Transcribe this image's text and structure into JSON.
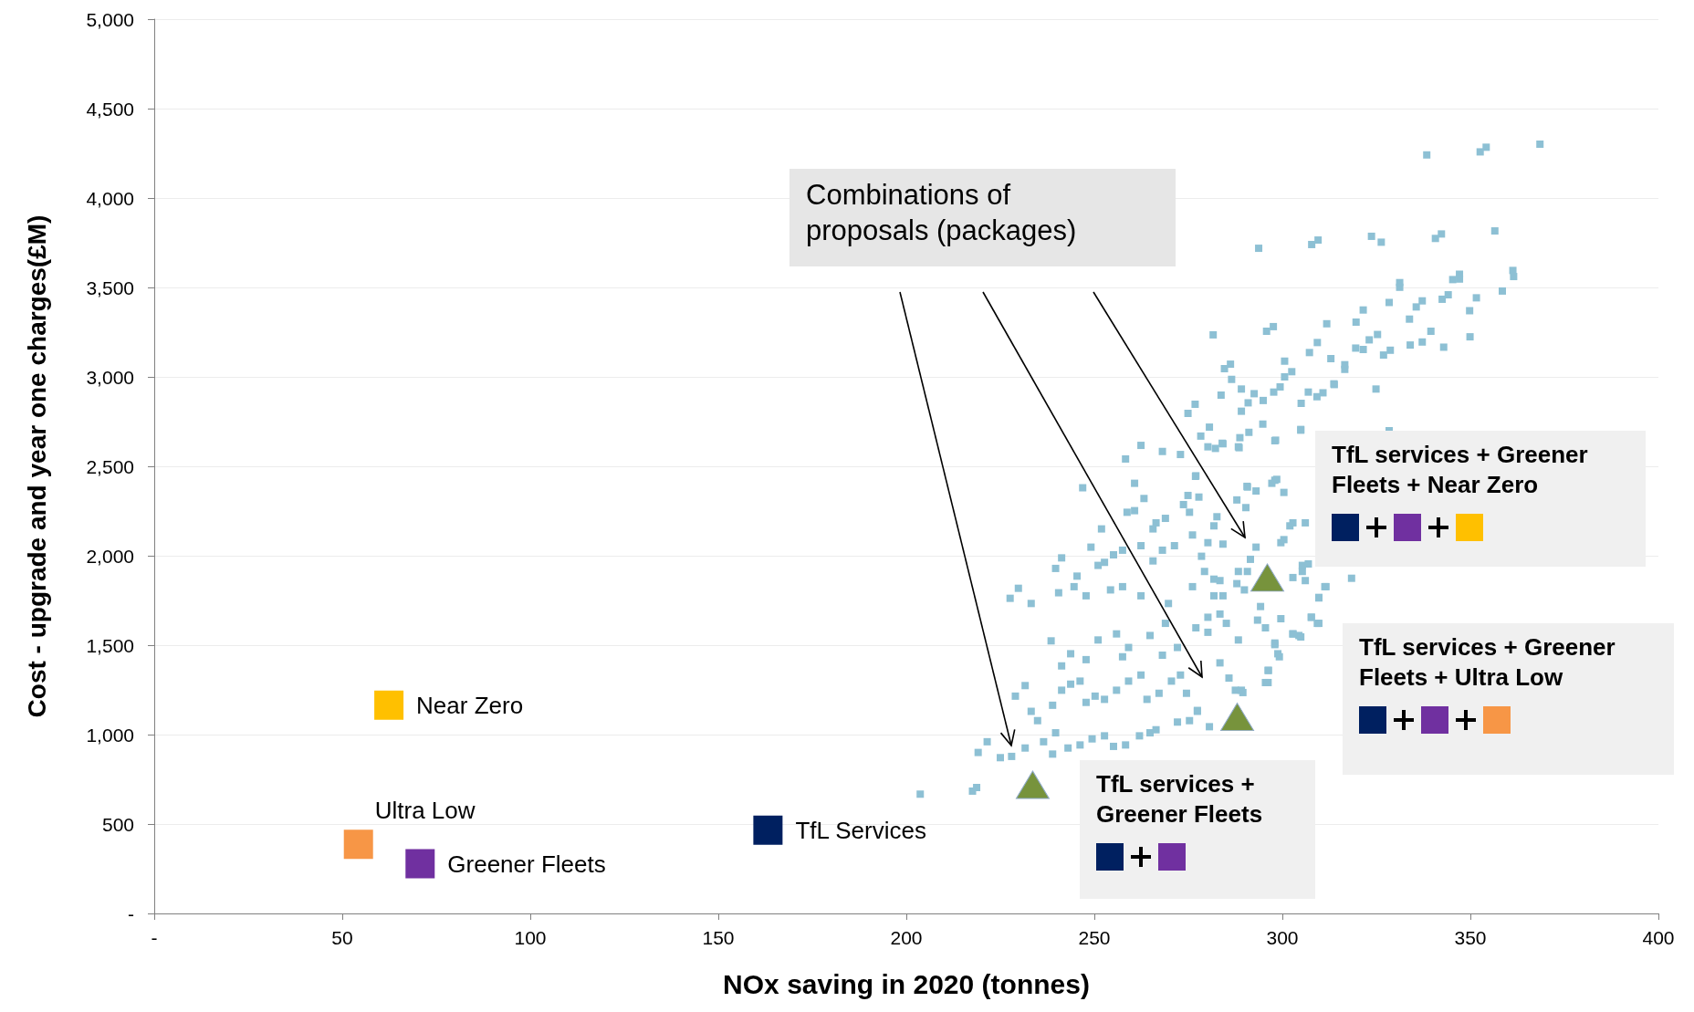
{
  "chart_data": {
    "type": "scatter",
    "xlabel": "NOx saving in 2020 (tonnes)",
    "ylabel": "Cost - upgrade and year one charges(£M)",
    "xlim": [
      0,
      400
    ],
    "xticks": [
      {
        "value": 0,
        "label": "-"
      },
      50,
      100,
      150,
      200,
      250,
      300,
      350,
      400
    ],
    "ylim": [
      0,
      5000
    ],
    "yticks": [
      {
        "value": 0,
        "label": "-"
      },
      500,
      {
        "value": 1000,
        "label": "1,000"
      },
      {
        "value": 1500,
        "label": "1,500"
      },
      {
        "value": 2000,
        "label": "2,000"
      },
      {
        "value": 2500,
        "label": "2,500"
      },
      {
        "value": 3000,
        "label": "3,000"
      },
      {
        "value": 3500,
        "label": "3,500"
      },
      {
        "value": 4000,
        "label": "4,000"
      },
      {
        "value": 4500,
        "label": "4,500"
      },
      {
        "value": 5000,
        "label": "5,000"
      }
    ],
    "grid": "y",
    "legend": false,
    "marker": "square",
    "annotations": [
      "Combinations of proposals (packages)",
      "TfL services  + Greener Fleets + Near Zero",
      "TfL services + Greener Fleets + Ultra Low",
      "TfL services + Greener Fleets"
    ],
    "series": [
      {
        "name": "TfL Services",
        "color": "#002060",
        "x": [
          163.2
        ],
        "values": [
          465
        ]
      },
      {
        "name": "Greener Fleets",
        "color": "#7030a0",
        "x": [
          70.7
        ],
        "values": [
          278
        ]
      },
      {
        "name": "Near Zero",
        "color": "#ffc000",
        "x": [
          62.4
        ],
        "values": [
          1165
        ]
      },
      {
        "name": "Ultra Low",
        "color": "#f79646",
        "x": [
          54.3
        ],
        "values": [
          386
        ]
      },
      {
        "color": "#8dc0d4",
        "x": [
          203.7,
          218.7,
          217.6,
          219.1,
          221.5,
          225,
          228,
          227.6,
          229.8,
          233.2,
          229,
          231.6,
          233.2,
          234.9,
          231.6,
          236.5,
          239.7,
          238.9,
          243,
          246.2,
          249.4,
          252.7,
          255.1,
          258.3,
          262,
          264.8,
          266.4,
          272.1,
          275.3,
          277.4,
          280.6,
          238.9,
          241.3,
          243.7,
          246.2,
          247.8,
          250.2,
          252.7,
          255.9,
          259.1,
          262.4,
          264,
          267.2,
          270.5,
          272.9,
          274.5,
          283.4,
          285.8,
          289.1,
          295.5,
          296.3,
          298.8,
          298,
          304.4,
          288.3,
          285.1,
          280.2,
          277,
          272.1,
          268.1,
          264.8,
          268.9,
          269.7,
          262.4,
          257.5,
          254.3,
          251,
          255.9,
          259.1,
          257.5,
          247.8,
          243.7,
          241.3,
          238.5,
          247.8,
          244.6,
          240.5,
          245.4,
          251,
          255.1,
          257.5,
          252.7,
          239.7,
          241.3,
          249.1,
          251.9,
          262.4,
          265.6,
          268.1,
          271.3,
          266.4,
          268.9,
          265.6,
          260.7,
          258.7,
          263.2,
          260.7,
          246.9,
          258.3,
          262.4,
          268.1,
          272.9,
          277,
          274.9,
          277.8,
          273.7,
          275.3,
          280.2,
          284.2,
          288.3,
          298,
          290.6,
          293,
          298,
          300.4,
          282.6,
          281.8,
          287.9,
          290.3,
          280.2,
          284.2,
          276.1,
          293,
          291.5,
          290.7,
          299.6,
          302,
          306.1,
          302.8,
          306.1,
          305.3,
          311.3,
          309.7,
          307.7,
          309.3,
          302.8,
          294.2,
          293.4,
          295.5,
          299.6,
          283.4,
          280.2,
          281.8,
          284.2,
          283.4,
          276.1,
          279.3,
          278.5,
          281.8,
          287.9,
          288.3,
          289.9,
          338.4,
          352.6,
          354.2,
          368.5,
          293.7,
          307.8,
          309.5,
          323.7,
          326.3,
          340.7,
          342.3,
          356.5,
          331.2,
          331.2,
          328.4,
          321.5,
          319.6,
          311.8,
          345.3,
          347.1,
          347.1,
          344.1,
          342.5,
          337.2,
          335.6,
          333.8,
          361.3,
          361.5,
          358.5,
          351.6,
          349.8,
          349.9,
          342.9,
          337.2,
          334,
          328.7,
          326.9,
          325.3,
          323.1,
          321.5,
          319.5,
          339.5,
          309.3,
          307.2,
          312.9,
          316.6,
          316.6,
          313.7,
          324.9,
          297.6,
          295.8,
          281.6,
          286.2,
          284.6,
          286.5,
          300.6,
          302.5,
          300.6,
          306.9,
          305,
          309.2,
          310.8,
          299.4,
          297.7,
          289.1,
          292.5,
          290.9,
          294.9,
          289.1,
          283.7,
          276.8,
          274.9,
          294.8,
          291.1,
          288.7,
          284,
          282.2,
          288.5,
          280.6,
          278.3,
          304.9,
          298.2,
          328.4,
          276.9,
          290.7,
          297.2,
          298.5,
          318.4,
          311.6,
          309.7,
          307.7,
          309.7,
          302.8,
          304.9,
          298,
          299.2,
          296.2,
          296.2,
          289.5,
          287.5,
          277.4,
          306.9,
          305.3,
          302.8,
          300.4,
          304.9,
          313.8
        ],
        "values": [
          667,
          704,
          684,
          900,
          960,
          871,
          878,
          1762,
          1818,
          1733,
          1215,
          1274,
          1130,
          1078,
          925,
          960,
          1010,
          891,
          925,
          942,
          976,
          993,
          934,
          942,
          993,
          1010,
          1027,
          1070,
          1078,
          1130,
          1044,
          1164,
          1248,
          1282,
          1299,
          1180,
          1215,
          1197,
          1248,
          1299,
          1333,
          1197,
          1231,
          1299,
          1333,
          1231,
          1401,
          1316,
          1248,
          1291,
          1359,
          1452,
          1503,
          1554,
          1529,
          1622,
          1572,
          1597,
          1487,
          1444,
          1554,
          1622,
          1733,
          1776,
          1827,
          1809,
          1529,
          1563,
          1487,
          1435,
          1419,
          1452,
          1384,
          1524,
          1776,
          1827,
          1793,
          1886,
          1946,
          2005,
          2031,
          1963,
          1929,
          1988,
          2048,
          2150,
          2056,
          1971,
          2031,
          2056,
          2184,
          2209,
          2150,
          2252,
          2243,
          2320,
          2405,
          2380,
          2541,
          2617,
          2583,
          2566,
          2447,
          2337,
          2328,
          2286,
          2243,
          2609,
          2626,
          2609,
          2643,
          2388,
          2362,
          2422,
          2354,
          2218,
          2167,
          2312,
          2269,
          2073,
          2065,
          2116,
          2048,
          1980,
          1912,
          2073,
          2167,
          2184,
          1878,
          1861,
          1946,
          1827,
          1767,
          1656,
          1622,
          1563,
          1716,
          1640,
          1597,
          1648,
          1674,
          1656,
          1776,
          1776,
          1861,
          1827,
          1912,
          1997,
          1869,
          1844,
          1912,
          1809,
          4241,
          4258,
          4284,
          4301,
          3719,
          3740,
          3765,
          3786,
          3753,
          3774,
          3799,
          3816,
          3527,
          3501,
          3416,
          3374,
          3306,
          3297,
          3544,
          3574,
          3547,
          3459,
          3434,
          3425,
          3391,
          3323,
          3595,
          3561,
          3480,
          3442,
          3370,
          3224,
          3166,
          3195,
          3178,
          3149,
          3122,
          3237,
          3207,
          3153,
          3161,
          3255,
          3192,
          3136,
          3102,
          3068,
          3042,
          2961,
          2932,
          3281,
          3255,
          3235,
          3071,
          3046,
          2986,
          3088,
          3029,
          3000,
          2915,
          2852,
          2889,
          2911,
          2944,
          2915,
          2932,
          2906,
          2855,
          2868,
          2808,
          2898,
          2847,
          2796,
          2736,
          2690,
          2660,
          2629,
          2600,
          2604,
          2719,
          2669,
          2706,
          2646,
          2699,
          2444,
          2384,
          2405,
          2427,
          1874,
          1827,
          1764,
          1656,
          1622,
          1563,
          1546,
          1512,
          1435,
          1359,
          1291,
          1235,
          1248,
          1135,
          1954,
          1912,
          2184,
          2090,
          2702,
          2957
        ]
      },
      {
        "type": "scatter",
        "marker": "triangle",
        "color": "#77933c",
        "x": [
          233.6,
          288,
          296
        ],
        "values": [
          719,
          1099,
          1878
        ]
      }
    ]
  }
}
